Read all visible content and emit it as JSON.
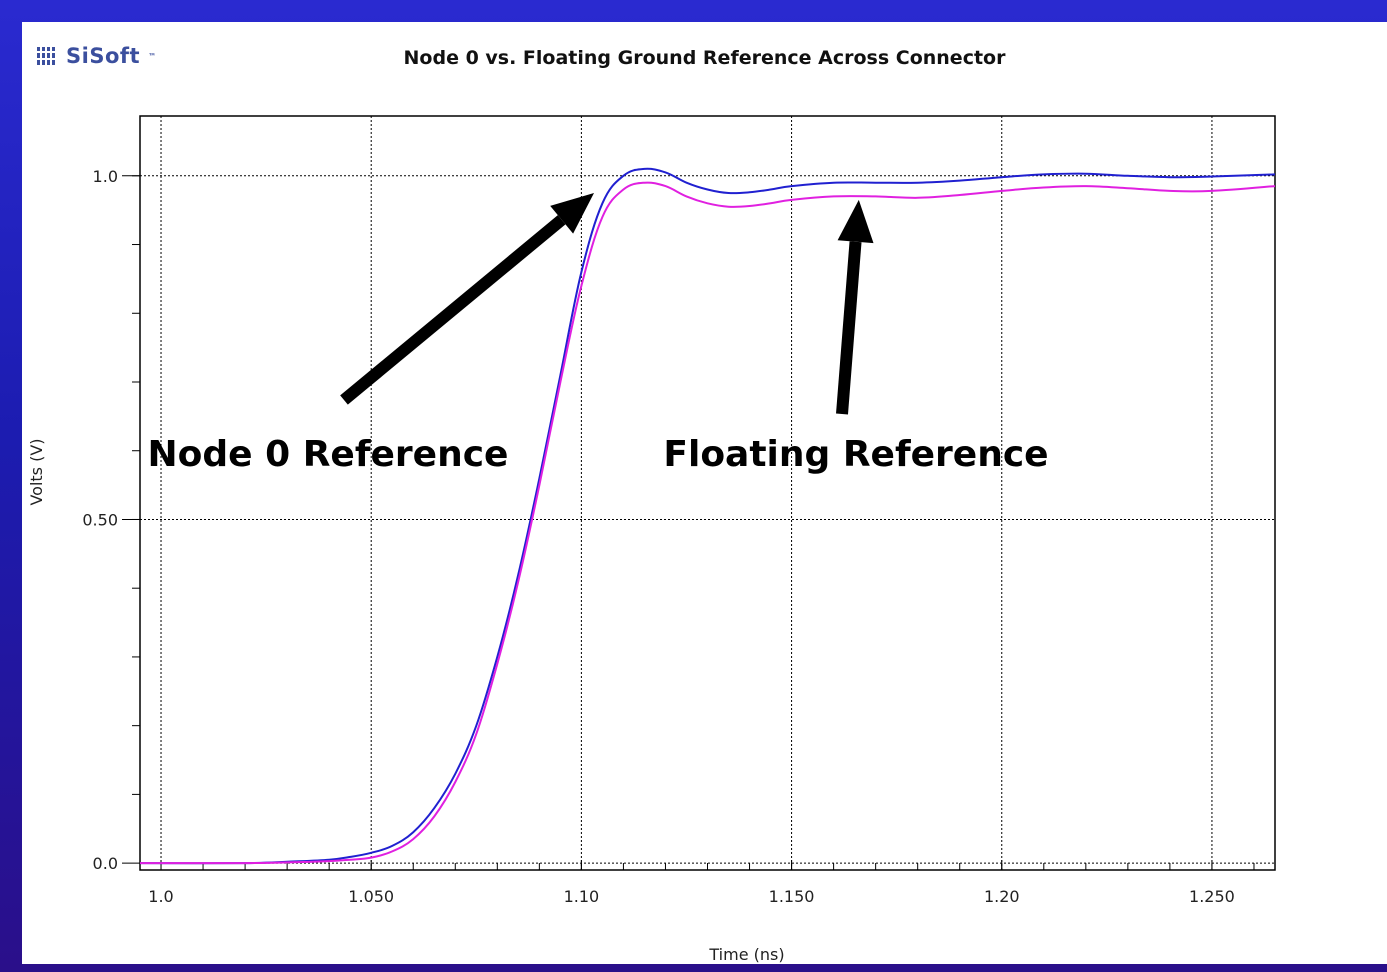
{
  "brand": {
    "logo_text": "SiSoft",
    "logo_tm": "™"
  },
  "chart_data": {
    "type": "line",
    "title": "Node 0 vs. Floating Ground Reference Across Connector",
    "xlabel": "Time (ns)",
    "ylabel": "Volts (V)",
    "xlim": [
      0.995,
      1.265
    ],
    "ylim": [
      -0.01,
      1.087
    ],
    "x_ticks": [
      {
        "value": 1.0,
        "label": "1.0"
      },
      {
        "value": 1.05,
        "label": "1.050"
      },
      {
        "value": 1.1,
        "label": "1.10"
      },
      {
        "value": 1.15,
        "label": "1.150"
      },
      {
        "value": 1.2,
        "label": "1.20"
      },
      {
        "value": 1.25,
        "label": "1.250"
      }
    ],
    "y_ticks": [
      {
        "value": 0.0,
        "label": "0.0"
      },
      {
        "value": 0.5,
        "label": "0.50"
      },
      {
        "value": 1.0,
        "label": "1.0"
      }
    ],
    "grid": true,
    "series": [
      {
        "color": "#2020d0",
        "points": [
          [
            0.995,
            0.0
          ],
          [
            1.02,
            0.0
          ],
          [
            1.03,
            0.002
          ],
          [
            1.04,
            0.005
          ],
          [
            1.045,
            0.009
          ],
          [
            1.05,
            0.015
          ],
          [
            1.055,
            0.025
          ],
          [
            1.06,
            0.045
          ],
          [
            1.065,
            0.08
          ],
          [
            1.07,
            0.13
          ],
          [
            1.075,
            0.2
          ],
          [
            1.08,
            0.3
          ],
          [
            1.085,
            0.42
          ],
          [
            1.09,
            0.56
          ],
          [
            1.095,
            0.71
          ],
          [
            1.1,
            0.86
          ],
          [
            1.105,
            0.96
          ],
          [
            1.11,
            1.0
          ],
          [
            1.115,
            1.01
          ],
          [
            1.12,
            1.005
          ],
          [
            1.125,
            0.99
          ],
          [
            1.13,
            0.98
          ],
          [
            1.135,
            0.975
          ],
          [
            1.14,
            0.976
          ],
          [
            1.145,
            0.98
          ],
          [
            1.15,
            0.985
          ],
          [
            1.16,
            0.99
          ],
          [
            1.17,
            0.99
          ],
          [
            1.18,
            0.99
          ],
          [
            1.19,
            0.993
          ],
          [
            1.2,
            0.998
          ],
          [
            1.21,
            1.002
          ],
          [
            1.22,
            1.003
          ],
          [
            1.23,
            1.0
          ],
          [
            1.24,
            0.998
          ],
          [
            1.25,
            0.999
          ],
          [
            1.265,
            1.002
          ]
        ]
      },
      {
        "color": "#e020e0",
        "points": [
          [
            0.995,
            0.0
          ],
          [
            1.02,
            0.0
          ],
          [
            1.03,
            0.001
          ],
          [
            1.04,
            0.003
          ],
          [
            1.045,
            0.005
          ],
          [
            1.05,
            0.008
          ],
          [
            1.055,
            0.017
          ],
          [
            1.06,
            0.035
          ],
          [
            1.065,
            0.068
          ],
          [
            1.07,
            0.118
          ],
          [
            1.075,
            0.188
          ],
          [
            1.08,
            0.29
          ],
          [
            1.085,
            0.41
          ],
          [
            1.09,
            0.55
          ],
          [
            1.095,
            0.7
          ],
          [
            1.1,
            0.84
          ],
          [
            1.105,
            0.94
          ],
          [
            1.11,
            0.98
          ],
          [
            1.115,
            0.99
          ],
          [
            1.12,
            0.985
          ],
          [
            1.125,
            0.97
          ],
          [
            1.13,
            0.96
          ],
          [
            1.135,
            0.955
          ],
          [
            1.14,
            0.956
          ],
          [
            1.145,
            0.96
          ],
          [
            1.15,
            0.965
          ],
          [
            1.16,
            0.97
          ],
          [
            1.17,
            0.97
          ],
          [
            1.18,
            0.968
          ],
          [
            1.19,
            0.972
          ],
          [
            1.2,
            0.978
          ],
          [
            1.21,
            0.983
          ],
          [
            1.22,
            0.985
          ],
          [
            1.23,
            0.982
          ],
          [
            1.24,
            0.978
          ],
          [
            1.25,
            0.978
          ],
          [
            1.265,
            0.985
          ]
        ]
      }
    ],
    "annotations": [
      {
        "text": "Node 0 Reference",
        "target_x": 1.103,
        "target_y": 0.975
      },
      {
        "text": "Floating Reference",
        "target_x": 1.166,
        "target_y": 0.965
      }
    ]
  }
}
